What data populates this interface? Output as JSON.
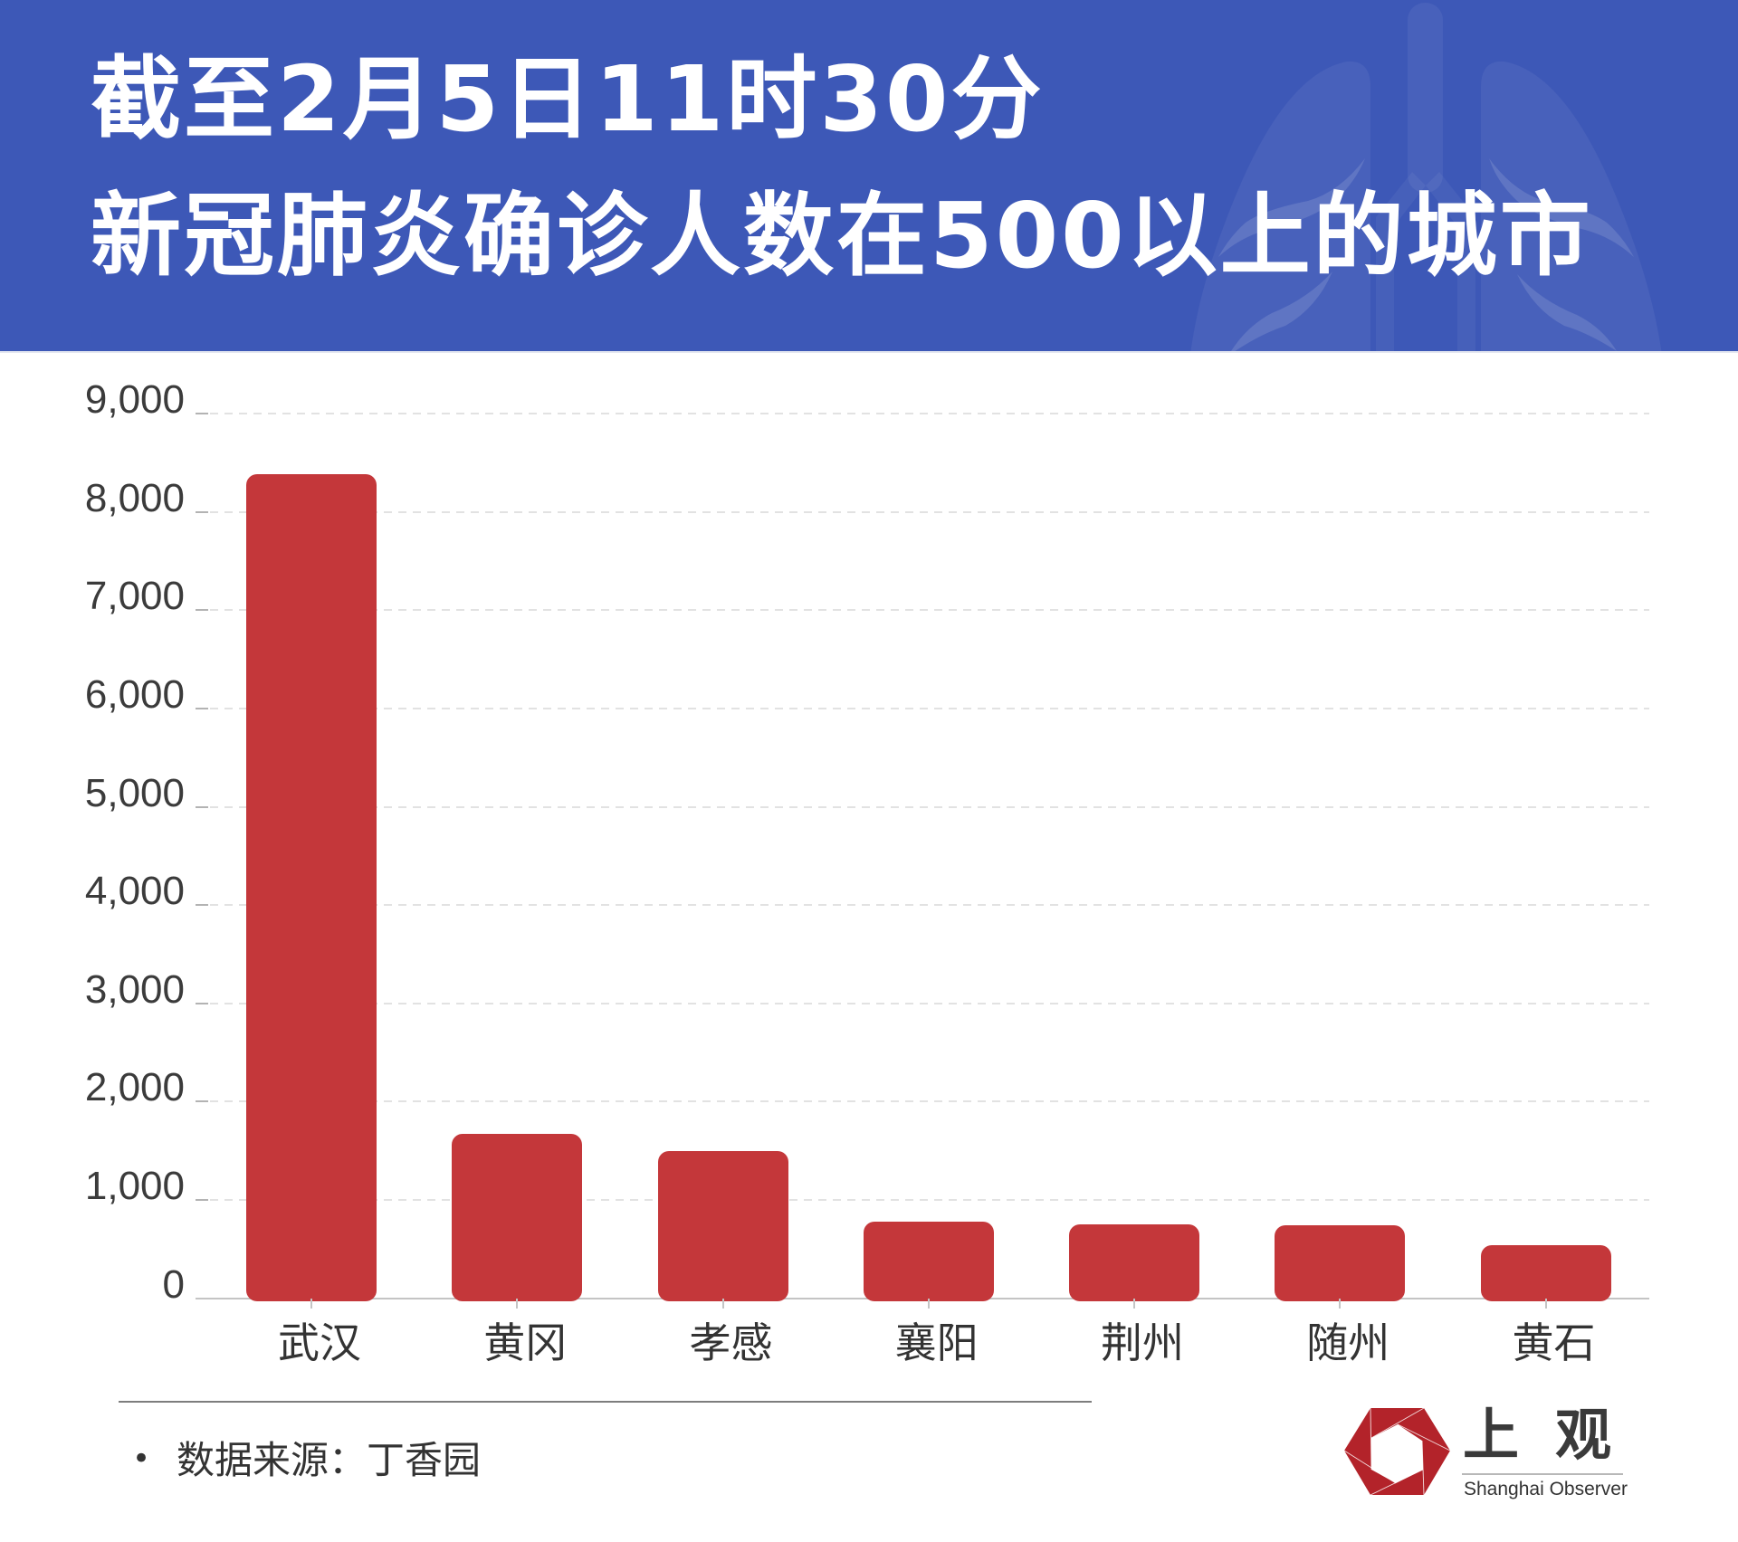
{
  "header": {
    "title_line1": "截至2月5日11时30分",
    "title_line2": "新冠肺炎确诊人数在500以上的城市",
    "background_color": "#3d58b7",
    "illustration": "lungs-icon"
  },
  "chart_data": {
    "type": "bar",
    "title": "截至2月5日11时30分 新冠肺炎确诊人数在500以上的城市",
    "categories": [
      "武汉",
      "黄冈",
      "孝感",
      "襄阳",
      "荆州",
      "随州",
      "黄石"
    ],
    "values": [
      8351,
      1645,
      1462,
      745,
      720,
      714,
      512
    ],
    "xlabel": "",
    "ylabel": "",
    "ylim": [
      0,
      9000
    ],
    "yticks": [
      0,
      1000,
      2000,
      3000,
      4000,
      5000,
      6000,
      7000,
      8000,
      9000
    ],
    "ytick_labels": [
      "0",
      "1,000",
      "2,000",
      "3,000",
      "4,000",
      "5,000",
      "6,000",
      "7,000",
      "8,000",
      "9,000"
    ],
    "grid": {
      "horizontal": true,
      "style": "dashed"
    },
    "legend": null,
    "colors": {
      "bar": "#c4373a",
      "grid": "#e2e2e2",
      "axis": "#c4c4c4"
    }
  },
  "footer": {
    "bullet": "•",
    "source_text": "数据来源：丁香园"
  },
  "logo": {
    "name_cn": "上观",
    "name_en": "Shanghai Observer",
    "brand_color": "#b3232a"
  }
}
